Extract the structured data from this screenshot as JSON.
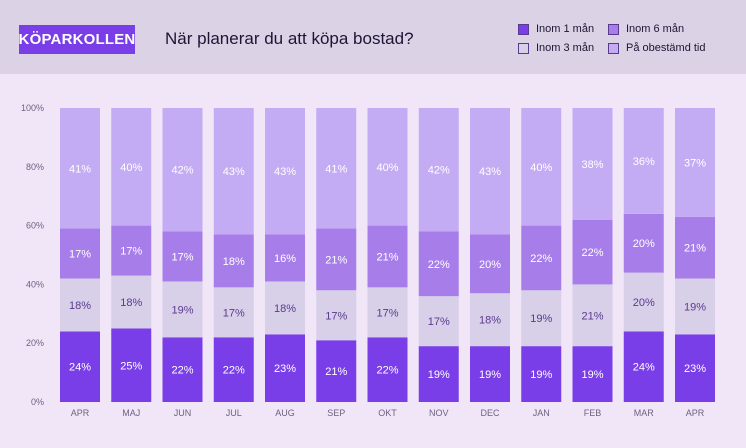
{
  "header": {
    "brand": "KÖPARKOLLEN",
    "title": "När planerar du att köpa bostad?"
  },
  "legend": [
    {
      "label": "Inom 1 mån",
      "color": "#7a3ee8"
    },
    {
      "label": "Inom 6 mån",
      "color": "#a77ee9"
    },
    {
      "label": "Inom 3 mån",
      "color": "#d8cfe9"
    },
    {
      "label": "På obestämd tid",
      "color": "#c4acf4"
    }
  ],
  "colors": {
    "inom_1": "#7a3ee8",
    "inom_3": "#d8cfe9",
    "inom_6": "#a77ee9",
    "obestamd": "#c4acf4",
    "label_dark_bg": "#ffffff",
    "label_light_bg": "#5a3a8e"
  },
  "chart_data": {
    "type": "bar",
    "stacked": true,
    "categories": [
      "APR",
      "MAJ",
      "JUN",
      "JUL",
      "AUG",
      "SEP",
      "OKT",
      "NOV",
      "DEC",
      "JAN",
      "FEB",
      "MAR",
      "APR"
    ],
    "series": [
      {
        "name": "Inom 1 mån",
        "values": [
          24,
          25,
          22,
          22,
          23,
          21,
          22,
          19,
          19,
          19,
          19,
          24,
          23
        ]
      },
      {
        "name": "Inom 3 mån",
        "values": [
          18,
          18,
          19,
          17,
          18,
          17,
          17,
          17,
          18,
          19,
          21,
          20,
          19
        ]
      },
      {
        "name": "Inom 6 mån",
        "values": [
          17,
          17,
          17,
          18,
          16,
          21,
          21,
          22,
          20,
          22,
          22,
          20,
          21
        ]
      },
      {
        "name": "På obestämd tid",
        "values": [
          41,
          40,
          42,
          43,
          43,
          41,
          40,
          42,
          43,
          40,
          38,
          36,
          37
        ]
      }
    ],
    "yticks": [
      "0%",
      "20%",
      "40%",
      "60%",
      "80%",
      "100%"
    ],
    "ylim": [
      0,
      100
    ],
    "value_suffix": "%",
    "legend_position": "top-right"
  }
}
